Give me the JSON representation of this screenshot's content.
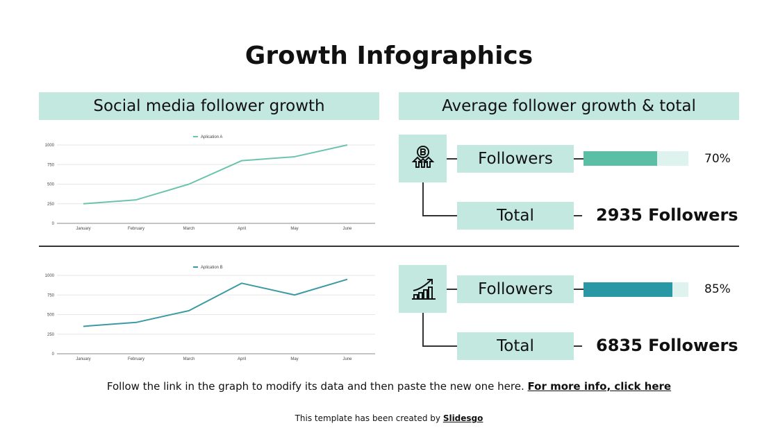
{
  "title": "Growth Infographics",
  "left_header": "Social media follower growth",
  "right_header": "Average follower growth & total",
  "colors": {
    "header_bg": "#c3e8e0",
    "series_a": "#6cc3ad",
    "series_b": "#3a9aa3",
    "bar_a": "#5bbfa5",
    "bar_b": "#2a98a4",
    "bar_track": "#dff3ee"
  },
  "chart_data": [
    {
      "type": "line",
      "categories": [
        "January",
        "February",
        "March",
        "April",
        "May",
        "June"
      ],
      "series": [
        {
          "name": "Aplication A",
          "values": [
            250,
            300,
            500,
            800,
            850,
            1000
          ]
        }
      ],
      "yticks": [
        0,
        250,
        500,
        750,
        1000
      ],
      "ylim": [
        0,
        1000
      ],
      "grid": true,
      "legend": "top"
    },
    {
      "type": "line",
      "categories": [
        "January",
        "February",
        "March",
        "April",
        "May",
        "June"
      ],
      "series": [
        {
          "name": "Aplication B",
          "values": [
            350,
            400,
            550,
            900,
            750,
            950
          ]
        }
      ],
      "yticks": [
        0,
        250,
        500,
        750,
        1000
      ],
      "ylim": [
        0,
        1000
      ],
      "grid": true,
      "legend": "top"
    }
  ],
  "stats": [
    {
      "icon": "coin-growth-icon",
      "followers_label": "Followers",
      "percent": 70,
      "percent_label": "70%",
      "total_label": "Total",
      "total_value": "2935 Followers"
    },
    {
      "icon": "growth-chart-icon",
      "followers_label": "Followers",
      "percent": 85,
      "percent_label": "85%",
      "total_label": "Total",
      "total_value": "6835 Followers"
    }
  ],
  "footer": {
    "text": "Follow the link in the graph to modify its data and then paste the new one here.",
    "link": "For more info, click here"
  },
  "credit": {
    "text": "This template has been created by",
    "brand": "Slidesgo"
  }
}
